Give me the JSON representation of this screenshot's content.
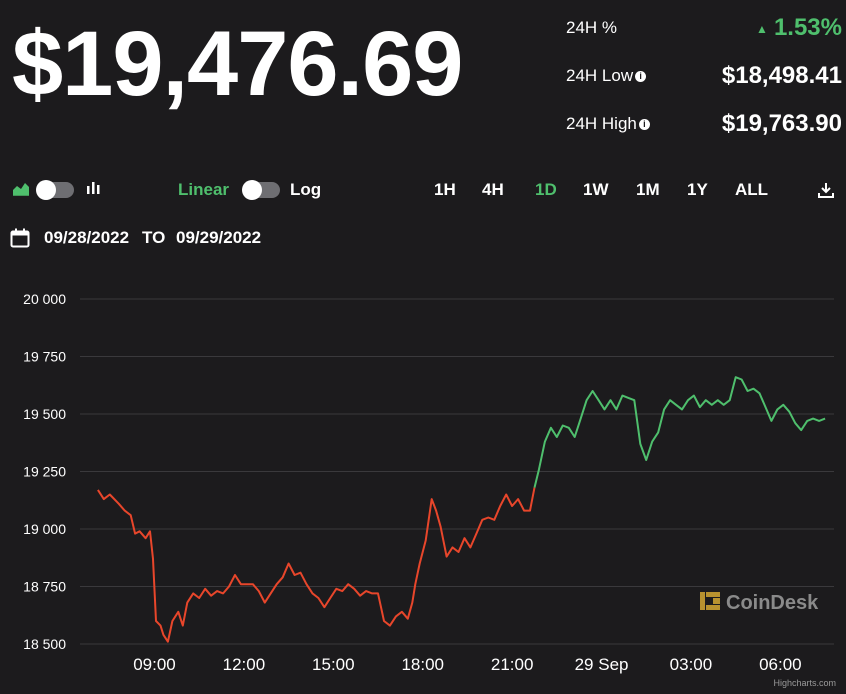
{
  "header": {
    "price": "$19,476.69",
    "stats": [
      {
        "label": "24H %",
        "value": "1.53%",
        "trend": "up",
        "info": false
      },
      {
        "label": "24H Low",
        "value": "$18,498.41",
        "trend": "",
        "info": true
      },
      {
        "label": "24H High",
        "value": "$19,763.90",
        "trend": "",
        "info": true
      }
    ]
  },
  "toolbar": {
    "linear_label": "Linear",
    "log_label": "Log",
    "ranges": [
      "1H",
      "4H",
      "1D",
      "1W",
      "1M",
      "1Y",
      "ALL"
    ],
    "active_range": "1D"
  },
  "date_range": {
    "from": "09/28/2022",
    "to_label": "TO",
    "to": "09/29/2022"
  },
  "watermark": "CoinDesk",
  "credits": "Highcharts.com",
  "colors": {
    "up": "#4fbf6d",
    "down": "#e8462b",
    "background": "#1c1b1d"
  },
  "chart_data": {
    "type": "line",
    "yticks": [
      18500,
      18750,
      19000,
      19250,
      19500,
      19750,
      20000
    ],
    "ytick_labels": [
      "18 500",
      "18 750",
      "19 000",
      "19 250",
      "19 500",
      "19 750",
      "20 000"
    ],
    "ylim": [
      18500,
      20000
    ],
    "xticks": [
      {
        "label": "09:00",
        "x": 9
      },
      {
        "label": "12:00",
        "x": 12
      },
      {
        "label": "15:00",
        "x": 15
      },
      {
        "label": "18:00",
        "x": 18
      },
      {
        "label": "21:00",
        "x": 21
      },
      {
        "label": "29 Sep",
        "x": 24
      },
      {
        "label": "03:00",
        "x": 27
      },
      {
        "label": "06:00",
        "x": 30
      }
    ],
    "xlim": [
      6.5,
      31.8
    ],
    "grid": true,
    "series": [
      {
        "color_down": "#e8462b",
        "color_up": "#4fbf6d",
        "points": [
          [
            7.1,
            19170
          ],
          [
            7.3,
            19130
          ],
          [
            7.5,
            19150
          ],
          [
            7.8,
            19110
          ],
          [
            8.0,
            19080
          ],
          [
            8.2,
            19060
          ],
          [
            8.35,
            18980
          ],
          [
            8.5,
            18990
          ],
          [
            8.7,
            18960
          ],
          [
            8.85,
            18990
          ],
          [
            8.95,
            18870
          ],
          [
            9.05,
            18600
          ],
          [
            9.2,
            18580
          ],
          [
            9.3,
            18540
          ],
          [
            9.45,
            18510
          ],
          [
            9.6,
            18600
          ],
          [
            9.8,
            18640
          ],
          [
            9.95,
            18580
          ],
          [
            10.1,
            18680
          ],
          [
            10.3,
            18720
          ],
          [
            10.5,
            18700
          ],
          [
            10.7,
            18740
          ],
          [
            10.9,
            18710
          ],
          [
            11.1,
            18730
          ],
          [
            11.3,
            18720
          ],
          [
            11.5,
            18750
          ],
          [
            11.7,
            18800
          ],
          [
            11.9,
            18760
          ],
          [
            12.1,
            18760
          ],
          [
            12.3,
            18760
          ],
          [
            12.5,
            18730
          ],
          [
            12.7,
            18680
          ],
          [
            12.9,
            18720
          ],
          [
            13.1,
            18760
          ],
          [
            13.3,
            18790
          ],
          [
            13.5,
            18850
          ],
          [
            13.7,
            18800
          ],
          [
            13.9,
            18810
          ],
          [
            14.1,
            18760
          ],
          [
            14.3,
            18720
          ],
          [
            14.5,
            18700
          ],
          [
            14.7,
            18660
          ],
          [
            14.9,
            18700
          ],
          [
            15.1,
            18740
          ],
          [
            15.3,
            18730
          ],
          [
            15.5,
            18760
          ],
          [
            15.7,
            18740
          ],
          [
            15.9,
            18710
          ],
          [
            16.1,
            18730
          ],
          [
            16.3,
            18720
          ],
          [
            16.5,
            18720
          ],
          [
            16.7,
            18600
          ],
          [
            16.9,
            18580
          ],
          [
            17.1,
            18620
          ],
          [
            17.3,
            18640
          ],
          [
            17.5,
            18610
          ],
          [
            17.65,
            18680
          ],
          [
            17.75,
            18760
          ],
          [
            17.9,
            18850
          ],
          [
            18.1,
            18950
          ],
          [
            18.3,
            19130
          ],
          [
            18.45,
            19080
          ],
          [
            18.6,
            19010
          ],
          [
            18.8,
            18880
          ],
          [
            19.0,
            18920
          ],
          [
            19.2,
            18900
          ],
          [
            19.4,
            18960
          ],
          [
            19.6,
            18920
          ],
          [
            19.8,
            18980
          ],
          [
            20.0,
            19040
          ],
          [
            20.2,
            19050
          ],
          [
            20.4,
            19040
          ],
          [
            20.6,
            19100
          ],
          [
            20.8,
            19150
          ],
          [
            21.0,
            19100
          ],
          [
            21.2,
            19130
          ],
          [
            21.4,
            19080
          ],
          [
            21.6,
            19080
          ],
          [
            21.75,
            19180
          ],
          [
            21.9,
            19260
          ],
          [
            22.1,
            19380
          ],
          [
            22.3,
            19440
          ],
          [
            22.5,
            19400
          ],
          [
            22.7,
            19450
          ],
          [
            22.9,
            19440
          ],
          [
            23.1,
            19400
          ],
          [
            23.3,
            19480
          ],
          [
            23.5,
            19560
          ],
          [
            23.7,
            19600
          ],
          [
            23.9,
            19560
          ],
          [
            24.1,
            19520
          ],
          [
            24.3,
            19560
          ],
          [
            24.5,
            19520
          ],
          [
            24.7,
            19580
          ],
          [
            24.9,
            19570
          ],
          [
            25.1,
            19560
          ],
          [
            25.3,
            19370
          ],
          [
            25.5,
            19300
          ],
          [
            25.7,
            19380
          ],
          [
            25.9,
            19420
          ],
          [
            26.1,
            19520
          ],
          [
            26.3,
            19560
          ],
          [
            26.5,
            19540
          ],
          [
            26.7,
            19520
          ],
          [
            26.9,
            19560
          ],
          [
            27.1,
            19580
          ],
          [
            27.3,
            19530
          ],
          [
            27.5,
            19560
          ],
          [
            27.7,
            19540
          ],
          [
            27.9,
            19560
          ],
          [
            28.1,
            19540
          ],
          [
            28.3,
            19560
          ],
          [
            28.5,
            19660
          ],
          [
            28.7,
            19650
          ],
          [
            28.9,
            19600
          ],
          [
            29.1,
            19610
          ],
          [
            29.3,
            19590
          ],
          [
            29.5,
            19530
          ],
          [
            29.7,
            19470
          ],
          [
            29.9,
            19520
          ],
          [
            30.1,
            19540
          ],
          [
            30.3,
            19510
          ],
          [
            30.5,
            19460
          ],
          [
            30.7,
            19430
          ],
          [
            30.9,
            19470
          ],
          [
            31.1,
            19480
          ],
          [
            31.3,
            19470
          ],
          [
            31.5,
            19480
          ]
        ]
      }
    ]
  }
}
